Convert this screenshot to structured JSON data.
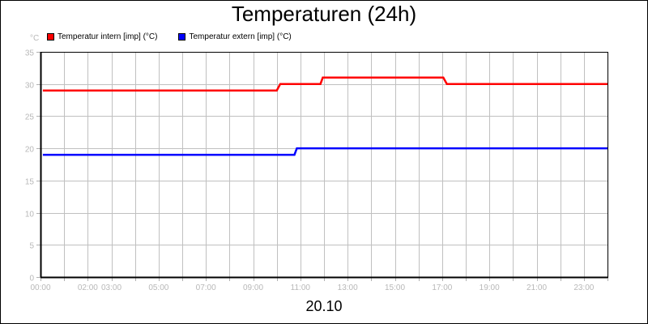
{
  "title": "Temperaturen (24h)",
  "unit_label": "°C",
  "date_label": "20.10",
  "legend": [
    {
      "label": "Temperatur intern [imp] (°C)",
      "color": "#ff0000"
    },
    {
      "label": "Temperatur extern [imp] (°C)",
      "color": "#0000ff"
    }
  ],
  "chart_data": {
    "type": "line",
    "title": "Temperaturen (24h)",
    "xlabel": "20.10",
    "ylabel": "°C",
    "ylim": [
      0,
      35
    ],
    "xlim_hours": [
      0,
      24
    ],
    "grid": true,
    "legend_position": "top-left",
    "y_ticks": [
      0,
      5,
      10,
      15,
      20,
      25,
      30,
      35
    ],
    "x_tick_labels": [
      "00:00",
      "02:00",
      "03:00",
      "05:00",
      "07:00",
      "09:00",
      "11:00",
      "13:00",
      "15:00",
      "17:00",
      "19:00",
      "21:00",
      "23:00"
    ],
    "x_tick_label_hours": [
      0,
      2,
      3,
      5,
      7,
      9,
      11,
      13,
      15,
      17,
      19,
      21,
      23
    ],
    "series": [
      {
        "name": "Temperatur intern [imp] (°C)",
        "color": "#ff0000",
        "points": [
          [
            0.1,
            29
          ],
          [
            10.0,
            29
          ],
          [
            10.15,
            30
          ],
          [
            11.85,
            30
          ],
          [
            11.95,
            31
          ],
          [
            17.05,
            31
          ],
          [
            17.2,
            30
          ],
          [
            24.0,
            30
          ]
        ]
      },
      {
        "name": "Temperatur extern [imp] (°C)",
        "color": "#0000ff",
        "points": [
          [
            0.1,
            19
          ],
          [
            10.75,
            19
          ],
          [
            10.85,
            20
          ],
          [
            24.0,
            20
          ]
        ]
      }
    ]
  }
}
